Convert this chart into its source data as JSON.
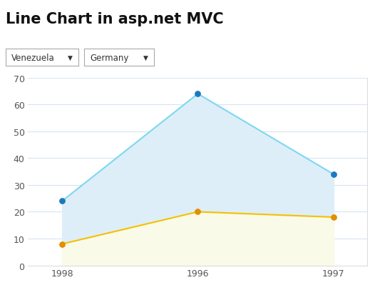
{
  "title": "Line Chart in asp.net MVC",
  "x_labels": [
    "1998",
    "1996",
    "1997"
  ],
  "x_positions": [
    0,
    1,
    2
  ],
  "series1_label": "Venezuela",
  "series1_values": [
    24,
    64,
    34
  ],
  "series1_line_color": "#7dd8f0",
  "series1_marker_color": "#1b7abf",
  "series1_fill_color": "#deeef8",
  "series2_label": "Germany",
  "series2_values": [
    8,
    20,
    18
  ],
  "series2_line_color": "#f5c000",
  "series2_marker_color": "#e09000",
  "series2_fill_color": "#fafae8",
  "ylim": [
    0,
    70
  ],
  "yticks": [
    0,
    10,
    20,
    30,
    40,
    50,
    60,
    70
  ],
  "background_color": "#ffffff",
  "plot_bg_color": "#ffffff",
  "grid_color": "#d8e4f0",
  "title_fontsize": 15,
  "axis_fontsize": 9,
  "dropdown1_text": "Venezuela",
  "dropdown2_text": "Germany"
}
